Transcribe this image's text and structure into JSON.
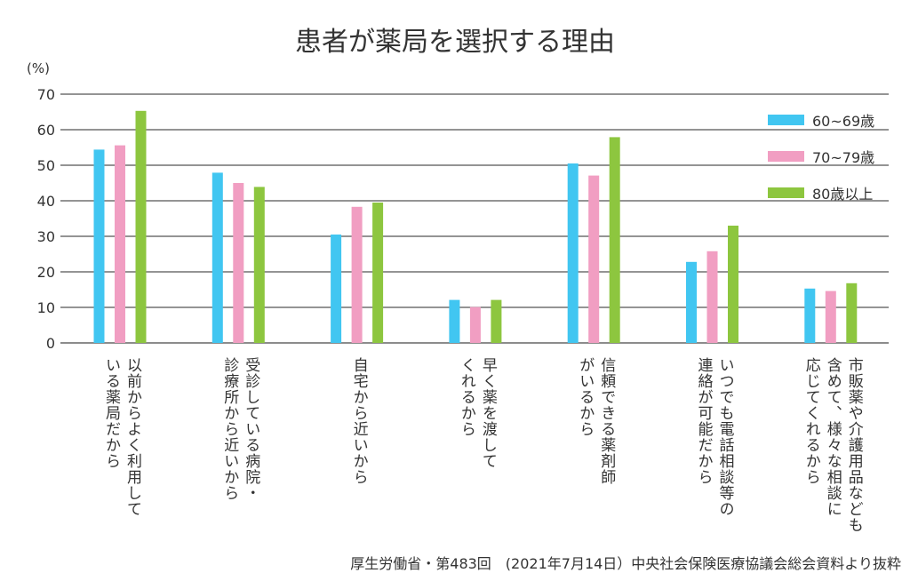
{
  "chart_data": {
    "type": "bar",
    "title": "患者が薬局を選択する理由",
    "ylabel": "(%)",
    "ylim": [
      0,
      70
    ],
    "yticks": [
      0,
      10,
      20,
      30,
      40,
      50,
      60,
      70
    ],
    "grid": true,
    "legend_position": "top-right",
    "categories": [
      [
        "以前からよく利用して",
        "いる薬局だから"
      ],
      [
        "受診している病院・",
        "診療所から近いから"
      ],
      [
        "自宅から近いから"
      ],
      [
        "早く薬を渡して",
        "くれるから"
      ],
      [
        "信頼できる薬剤師",
        "がいるから"
      ],
      [
        "いつでも電話相談等の",
        "連絡が可能だから"
      ],
      [
        "市販薬や介護用品なども",
        "含めて、様々な相談に",
        "応じてくれるから"
      ]
    ],
    "series": [
      {
        "name": "60~69歳",
        "color": "#41c6f1",
        "values": [
          54.4,
          47.9,
          30.5,
          12.1,
          50.5,
          22.8,
          15.3
        ]
      },
      {
        "name": "70~79歳",
        "color": "#f19ec2",
        "values": [
          55.6,
          45.0,
          38.3,
          10.1,
          47.1,
          25.8,
          14.6
        ]
      },
      {
        "name": "80歳以上",
        "color": "#8dc63f",
        "values": [
          65.3,
          43.9,
          39.5,
          12.1,
          57.9,
          33.0,
          16.8
        ]
      }
    ]
  },
  "source": "厚生労働省・第483回　(2021年7月14日）中央社会保険医療協議会総会資料より抜粋"
}
